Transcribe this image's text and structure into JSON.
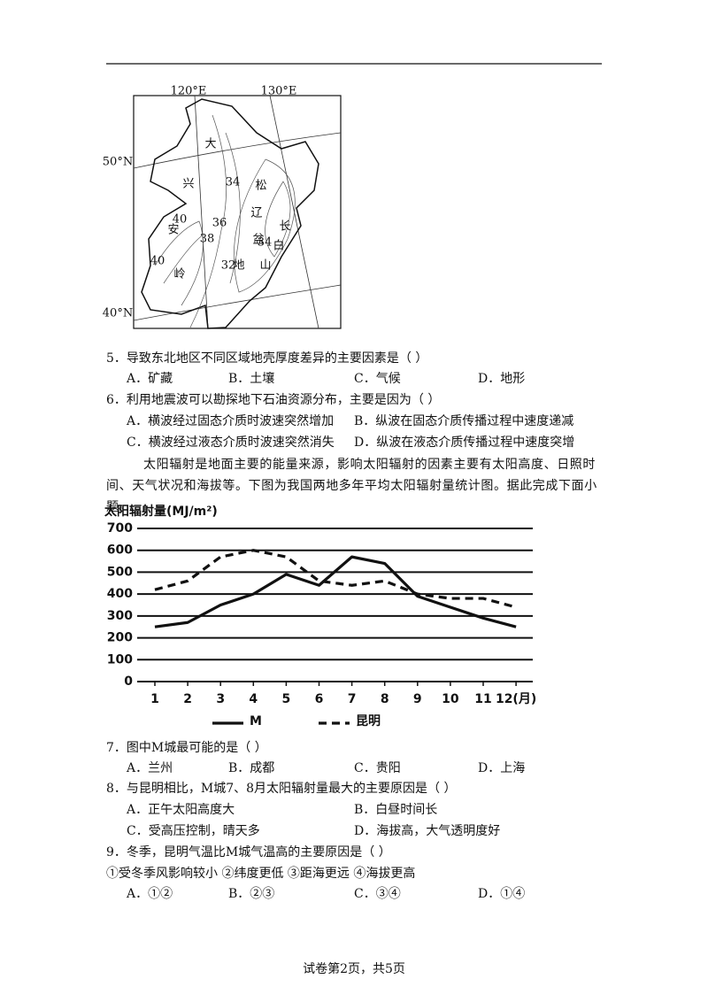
{
  "map": {
    "labels": [
      "120°E",
      "130°E",
      "50°N",
      "40°N",
      "34",
      "36",
      "38",
      "40",
      "40",
      "32",
      "34",
      "大",
      "兴",
      "安",
      "岭",
      "松",
      "辽",
      "盆",
      "地",
      "长",
      "白",
      "山"
    ]
  },
  "questions": [
    {
      "stem": "5．导致东北地区不同区域地壳厚度差异的主要因素是（ ）",
      "options": [
        "A．矿藏",
        "B．土壤",
        "C．气候",
        "D．地形"
      ]
    },
    {
      "stem": "6．利用地震波可以勘探地下石油资源分布，主要是因为（ ）",
      "options": [
        "A．横波经过固态介质时波速突然增加",
        "B．纵波在固态介质传播过程中速度递减",
        "C．横波经过液态介质时波速突然消失",
        "D．纵波在液态介质传播过程中速度突增"
      ]
    },
    {
      "stem": "7．图中M城最可能的是（ ）",
      "options": [
        "A．兰州",
        "B．成都",
        "C．贵阳",
        "D．上海"
      ]
    },
    {
      "stem": "8．与昆明相比，M城7、8月太阳辐射量最大的主要原因是（ ）",
      "options": [
        "A．正午太阳高度大",
        "B．白昼时间长",
        "C．受高压控制，晴天多",
        "D．海拔高，大气透明度好"
      ]
    },
    {
      "stem": "9．冬季，昆明气温比M城气温高的主要原因是（ ）",
      "statement": "①受冬季风影响较小 ②纬度更低 ③距海更远 ④海拔更高",
      "options": [
        "A．①②",
        "B．②③",
        "C．③④",
        "D．①④"
      ]
    }
  ],
  "passage": "太阳辐射是地面主要的能量来源，影响太阳辐射的因素主要有太阳高度、日照时间、天气状况和海拔等。下图为我国两地多年平均太阳辐射量统计图。据此完成下面小题。",
  "chart_data": {
    "type": "line",
    "title": "太阳辐射量(MJ/m²)",
    "categories": [
      "1",
      "2",
      "3",
      "4",
      "5",
      "6",
      "7",
      "8",
      "9",
      "10",
      "11",
      "12(月)"
    ],
    "series": [
      {
        "name": "M",
        "color": "#111111",
        "style": "solid",
        "values": [
          250,
          270,
          350,
          400,
          490,
          440,
          570,
          540,
          390,
          340,
          290,
          250
        ]
      },
      {
        "name": "昆明",
        "color": "#111111",
        "style": "dashed",
        "values": [
          420,
          460,
          570,
          600,
          570,
          460,
          440,
          460,
          400,
          380,
          380,
          340
        ]
      }
    ],
    "ylim": [
      0,
      700
    ],
    "yticks": [
      0,
      100,
      200,
      300,
      400,
      500,
      600,
      700
    ],
    "grid": true
  },
  "footer": "试卷第2页，共5页"
}
